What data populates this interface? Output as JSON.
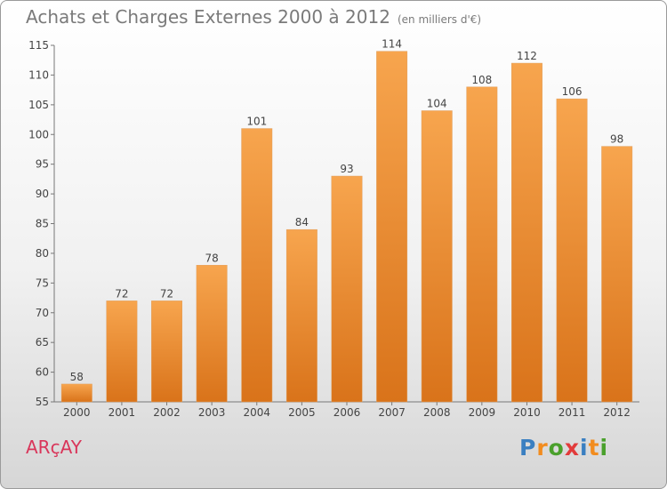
{
  "header": {
    "title": "Achats et Charges Externes 2000 à 2012",
    "unit": "(en milliers d'€)"
  },
  "footer": {
    "commune": "ARçAY",
    "brand": "Proxiti",
    "brand_letters": [
      "P",
      "r",
      "o",
      "x",
      "i",
      "t",
      "i"
    ],
    "brand_colors": [
      "#3a7fc1",
      "#f28c1e",
      "#4aa02c",
      "#e23b3b",
      "#3a7fc1",
      "#f28c1e",
      "#4aa02c"
    ]
  },
  "colors": {
    "bar_top": "#f7a54e",
    "bar_bottom": "#d9731a",
    "axis_text": "#444444",
    "commune": "#d9365a"
  },
  "chart_data": {
    "type": "bar",
    "title": "Achats et Charges Externes 2000 à 2012",
    "subtitle": "(en milliers d'€)",
    "xlabel": "",
    "ylabel": "",
    "categories": [
      "2000",
      "2001",
      "2002",
      "2003",
      "2004",
      "2005",
      "2006",
      "2007",
      "2008",
      "2009",
      "2010",
      "2011",
      "2012"
    ],
    "values": [
      58,
      72,
      72,
      78,
      101,
      84,
      93,
      114,
      104,
      108,
      112,
      106,
      98
    ],
    "ylim": [
      55,
      115
    ],
    "yticks": [
      55,
      60,
      65,
      70,
      75,
      80,
      85,
      90,
      95,
      100,
      105,
      110,
      115
    ],
    "grid": false,
    "legend": "none"
  }
}
